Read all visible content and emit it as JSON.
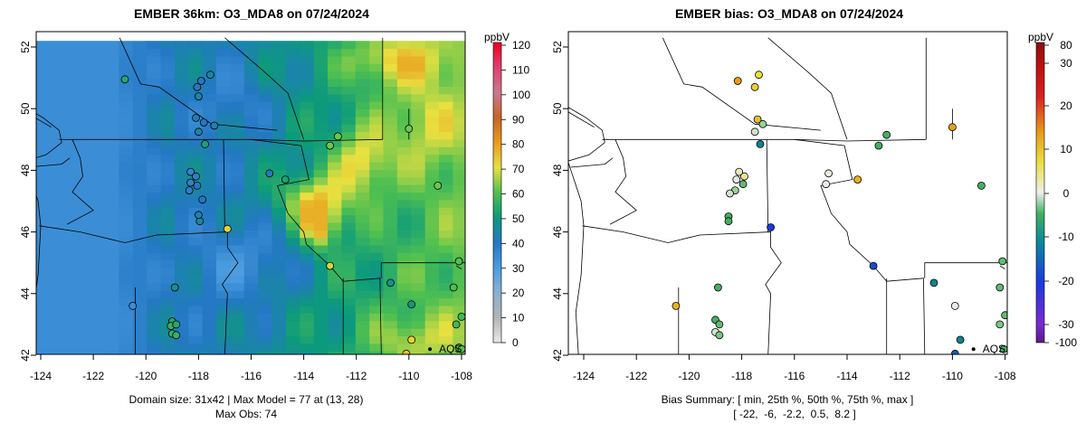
{
  "chart_data": [
    {
      "type": "heatmap",
      "title": "EMBER 36km: O3_MDA8 on 07/24/2024",
      "colorbar_unit": "ppbV",
      "colorbar_ticks": [
        0,
        10,
        20,
        30,
        40,
        50,
        60,
        70,
        80,
        90,
        100,
        110,
        120
      ],
      "x_ticks": [
        -124,
        -122,
        -120,
        -118,
        -116,
        -114,
        -112,
        -110,
        -108
      ],
      "y_ticks": [
        42,
        44,
        46,
        48,
        50,
        52
      ],
      "xlim": [
        -124.2,
        -108
      ],
      "ylim": [
        42,
        52.2
      ],
      "summary_lines": [
        "Domain size: 31x42 | Max Model = 77 at (13, 28)",
        "Max Obs: 74"
      ],
      "marker_label": "AQS",
      "marker_location": [
        -109.2,
        42.2
      ],
      "obs_points": [
        {
          "lon": -120.8,
          "lat": 50.95,
          "value": 54
        },
        {
          "lon": -117.9,
          "lat": 50.9,
          "value": 40
        },
        {
          "lon": -118.05,
          "lat": 50.7,
          "value": 40
        },
        {
          "lon": -117.55,
          "lat": 51.1,
          "value": 44
        },
        {
          "lon": -118.0,
          "lat": 50.4,
          "value": 45
        },
        {
          "lon": -118.1,
          "lat": 49.7,
          "value": 42
        },
        {
          "lon": -117.8,
          "lat": 49.55,
          "value": 40
        },
        {
          "lon": -117.4,
          "lat": 49.45,
          "value": 43
        },
        {
          "lon": -118.0,
          "lat": 49.25,
          "value": 44
        },
        {
          "lon": -117.75,
          "lat": 48.85,
          "value": 52
        },
        {
          "lon": -118.3,
          "lat": 47.95,
          "value": 36
        },
        {
          "lon": -118.1,
          "lat": 47.8,
          "value": 38
        },
        {
          "lon": -118.3,
          "lat": 47.6,
          "value": 37
        },
        {
          "lon": -118.05,
          "lat": 47.5,
          "value": 40
        },
        {
          "lon": -118.35,
          "lat": 47.35,
          "value": 38
        },
        {
          "lon": -117.85,
          "lat": 47.05,
          "value": 40
        },
        {
          "lon": -117.95,
          "lat": 46.35,
          "value": 45
        },
        {
          "lon": -118.0,
          "lat": 46.55,
          "value": 43
        },
        {
          "lon": -116.9,
          "lat": 46.1,
          "value": 72
        },
        {
          "lon": -115.3,
          "lat": 47.9,
          "value": 40
        },
        {
          "lon": -114.7,
          "lat": 47.7,
          "value": 52
        },
        {
          "lon": -113.0,
          "lat": 48.8,
          "value": 62
        },
        {
          "lon": -112.7,
          "lat": 49.1,
          "value": 62
        },
        {
          "lon": -110.0,
          "lat": 49.35,
          "value": 62
        },
        {
          "lon": -108.9,
          "lat": 47.5,
          "value": 62
        },
        {
          "lon": -113.0,
          "lat": 44.9,
          "value": 68
        },
        {
          "lon": -110.7,
          "lat": 44.35,
          "value": 48
        },
        {
          "lon": -109.9,
          "lat": 43.65,
          "value": 50
        },
        {
          "lon": -108.3,
          "lat": 44.2,
          "value": 60
        },
        {
          "lon": -120.5,
          "lat": 43.6,
          "value": 34
        },
        {
          "lon": -118.9,
          "lat": 44.2,
          "value": 48
        },
        {
          "lon": -119.0,
          "lat": 43.1,
          "value": 53
        },
        {
          "lon": -119.05,
          "lat": 42.95,
          "value": 56
        },
        {
          "lon": -118.85,
          "lat": 43.0,
          "value": 54
        },
        {
          "lon": -119.0,
          "lat": 42.7,
          "value": 55
        },
        {
          "lon": -118.85,
          "lat": 42.65,
          "value": 56
        },
        {
          "lon": -109.9,
          "lat": 42.5,
          "value": 72
        },
        {
          "lon": -110.1,
          "lat": 42.05,
          "value": 74
        },
        {
          "lon": -108.1,
          "lat": 45.05,
          "value": 60
        },
        {
          "lon": -108.0,
          "lat": 43.25,
          "value": 58
        },
        {
          "lon": -108.2,
          "lat": 43.0,
          "value": 58
        },
        {
          "lon": -108.1,
          "lat": 42.25,
          "value": 62
        },
        {
          "lon": -108.0,
          "lat": 42.2,
          "value": 60
        }
      ]
    },
    {
      "type": "scatter",
      "title": "EMBER bias: O3_MDA8 on 07/24/2024",
      "colorbar_unit": "ppbV",
      "colorbar_ticks": [
        -100,
        -30,
        -20,
        -10,
        0,
        10,
        20,
        30,
        80
      ],
      "x_ticks": [
        -124,
        -122,
        -120,
        -118,
        -116,
        -114,
        -112,
        -110,
        -108
      ],
      "y_ticks": [
        42,
        44,
        46,
        48,
        50,
        52
      ],
      "xlim": [
        -124.2,
        -108
      ],
      "ylim": [
        42,
        52.2
      ],
      "summary_lines": [
        "Bias Summary: [ min, 25th %, 50th %, 75th %, max ]",
        "[ -22,  -6,  -2.2,  0.5,  8.2 ]"
      ],
      "marker_label": "AQS",
      "marker_location": [
        -109.2,
        42.2
      ],
      "bias_points": [
        {
          "lon": -118.15,
          "lat": 50.9,
          "value": 8.2
        },
        {
          "lon": -117.5,
          "lat": 50.7,
          "value": 5
        },
        {
          "lon": -117.35,
          "lat": 51.1,
          "value": 4
        },
        {
          "lon": -117.4,
          "lat": 49.65,
          "value": 6
        },
        {
          "lon": -117.2,
          "lat": 49.5,
          "value": -3
        },
        {
          "lon": -117.5,
          "lat": 49.25,
          "value": -1
        },
        {
          "lon": -117.3,
          "lat": 48.85,
          "value": -12
        },
        {
          "lon": -118.1,
          "lat": 47.95,
          "value": 1
        },
        {
          "lon": -117.9,
          "lat": 47.8,
          "value": 2
        },
        {
          "lon": -118.2,
          "lat": 47.7,
          "value": 0
        },
        {
          "lon": -117.95,
          "lat": 47.55,
          "value": -5
        },
        {
          "lon": -118.25,
          "lat": 47.35,
          "value": -3
        },
        {
          "lon": -118.45,
          "lat": 47.25,
          "value": -1
        },
        {
          "lon": -118.5,
          "lat": 46.5,
          "value": -6
        },
        {
          "lon": -118.5,
          "lat": 46.35,
          "value": -6
        },
        {
          "lon": -116.9,
          "lat": 46.15,
          "value": -22
        },
        {
          "lon": -114.7,
          "lat": 47.9,
          "value": 0.5
        },
        {
          "lon": -114.8,
          "lat": 47.55,
          "value": 0
        },
        {
          "lon": -113.6,
          "lat": 47.7,
          "value": 7
        },
        {
          "lon": -112.8,
          "lat": 48.8,
          "value": -6
        },
        {
          "lon": -112.5,
          "lat": 49.15,
          "value": -6
        },
        {
          "lon": -110.0,
          "lat": 49.4,
          "value": 8
        },
        {
          "lon": -108.9,
          "lat": 47.5,
          "value": -6
        },
        {
          "lon": -113.0,
          "lat": 44.9,
          "value": -20
        },
        {
          "lon": -110.7,
          "lat": 44.35,
          "value": -12
        },
        {
          "lon": -109.9,
          "lat": 43.6,
          "value": 0
        },
        {
          "lon": -108.2,
          "lat": 44.2,
          "value": -5
        },
        {
          "lon": -120.5,
          "lat": 43.6,
          "value": 7
        },
        {
          "lon": -118.9,
          "lat": 44.2,
          "value": -6
        },
        {
          "lon": -119.0,
          "lat": 43.15,
          "value": -6
        },
        {
          "lon": -118.85,
          "lat": 43.0,
          "value": -5
        },
        {
          "lon": -119.0,
          "lat": 42.75,
          "value": -1
        },
        {
          "lon": -118.85,
          "lat": 42.65,
          "value": -4
        },
        {
          "lon": -109.7,
          "lat": 42.5,
          "value": -12
        },
        {
          "lon": -109.9,
          "lat": 42.05,
          "value": -18
        },
        {
          "lon": -108.1,
          "lat": 45.05,
          "value": -5
        },
        {
          "lon": -108.0,
          "lat": 43.3,
          "value": -5
        },
        {
          "lon": -108.2,
          "lat": 43.0,
          "value": -4
        },
        {
          "lon": -108.05,
          "lat": 42.2,
          "value": -6
        }
      ]
    }
  ]
}
